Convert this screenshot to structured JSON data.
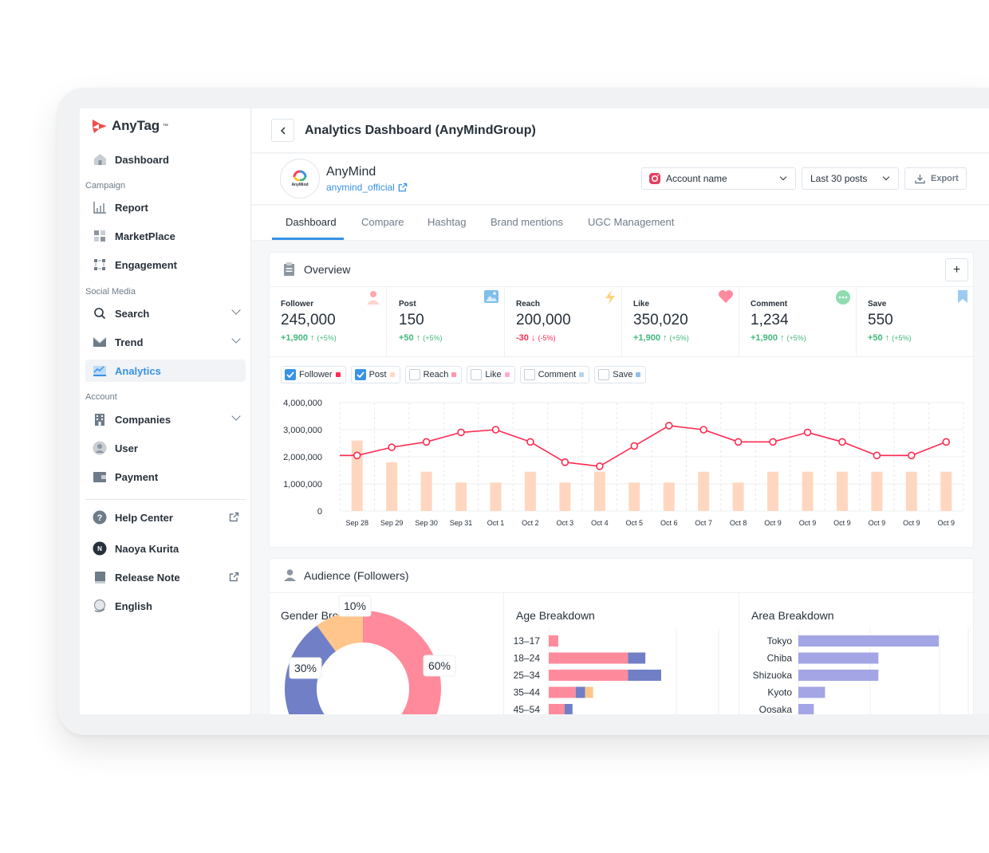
{
  "app": {
    "name": "AnyTag"
  },
  "sidebar": {
    "sections": {
      "campaign": "Campaign",
      "social": "Social Media",
      "account": "Account"
    },
    "items": [
      {
        "label": "Dashboard"
      },
      {
        "label": "Report"
      },
      {
        "label": "MarketPlace"
      },
      {
        "label": "Engagement"
      },
      {
        "label": "Search"
      },
      {
        "label": "Trend"
      },
      {
        "label": "Analytics"
      },
      {
        "label": "Companies"
      },
      {
        "label": "User"
      },
      {
        "label": "Payment"
      },
      {
        "label": "Help Center"
      },
      {
        "label": "Naoya Kurita",
        "initial": "N"
      },
      {
        "label": "Release Note"
      },
      {
        "label": "English"
      }
    ],
    "active_item": "Analytics"
  },
  "header": {
    "title": "Analytics Dashboard (AnyMindGroup)"
  },
  "account": {
    "name": "AnyMind",
    "handle": "anymind_official",
    "avatar_text": "AnyMind",
    "select_placeholder": "Account name",
    "range_label": "Last 30 posts",
    "export_label": "Export"
  },
  "tabs": [
    {
      "label": "Dashboard",
      "active": true
    },
    {
      "label": "Compare"
    },
    {
      "label": "Hashtag"
    },
    {
      "label": "Brand mentions"
    },
    {
      "label": "UGC Management"
    }
  ],
  "overview": {
    "title": "Overview",
    "plus_label": "+",
    "metrics": [
      {
        "label": "Follower",
        "value": "245,000",
        "delta": "+1,900",
        "arrow": "↑",
        "pct": "(+5%)",
        "trend": "up",
        "icon": "person-icon",
        "color": "#ffaaa8"
      },
      {
        "label": "Post",
        "value": "150",
        "delta": "+50",
        "arrow": "↑",
        "pct": "(+5%)",
        "trend": "up",
        "icon": "image-icon",
        "color": "#7fbeeb"
      },
      {
        "label": "Reach",
        "value": "200,000",
        "delta": "-30",
        "arrow": "↓",
        "pct": "(-5%)",
        "trend": "down",
        "icon": "lightning-icon",
        "color": "#ffd27f"
      },
      {
        "label": "Like",
        "value": "350,020",
        "delta": "+1,900",
        "arrow": "↑",
        "pct": "(+5%)",
        "trend": "up",
        "icon": "heart-icon",
        "color": "#ff8aa0"
      },
      {
        "label": "Comment",
        "value": "1,234",
        "delta": "+1,900",
        "arrow": "↑",
        "pct": "(+5%)",
        "trend": "up",
        "icon": "chat-icon",
        "color": "#8fdcb0"
      },
      {
        "label": "Save",
        "value": "550",
        "delta": "+50",
        "arrow": "↑",
        "pct": "(+5%)",
        "trend": "up",
        "icon": "bookmark-icon",
        "color": "#9ccbf2"
      }
    ],
    "series_toggles": [
      {
        "label": "Follower",
        "checked": true,
        "color": "#ff2b52"
      },
      {
        "label": "Post",
        "checked": true,
        "color": "#ffd7c0"
      },
      {
        "label": "Reach",
        "checked": false,
        "color": "#ff96ae"
      },
      {
        "label": "Like",
        "checked": false,
        "color": "#ffaad0"
      },
      {
        "label": "Comment",
        "checked": false,
        "color": "#b4d4f0"
      },
      {
        "label": "Save",
        "checked": false,
        "color": "#93bde8"
      }
    ]
  },
  "audience": {
    "title": "Audience (Followers)",
    "gender_title": "Gender Breakdown",
    "age_title": "Age Breakdown",
    "area_title": "Area Breakdown"
  },
  "colors": {
    "accent": "#3892e5",
    "up": "#40b87c",
    "down": "#ff2b52"
  },
  "chart_data": [
    {
      "type": "bar",
      "title": "",
      "categories": [
        "Sep 28",
        "Sep 29",
        "Sep 30",
        "Sep 31",
        "Oct 1",
        "Oct 2",
        "Oct 3",
        "Oct 4",
        "Oct 5",
        "Oct 6",
        "Oct 7",
        "Oct 8",
        "Oct 9",
        "Oct 9",
        "Oct 9",
        "Oct 9",
        "Oct 9",
        "Oct 9"
      ],
      "yticks": [
        "4,000,000",
        "3,000,000",
        "2,000,000",
        "1,000,000",
        "0"
      ],
      "ylim": [
        0,
        4000000
      ],
      "series": [
        {
          "name": "Follower",
          "kind": "line",
          "color": "#ff2b52",
          "values": [
            2050000,
            2350000,
            2550000,
            2900000,
            3000000,
            2550000,
            1800000,
            1650000,
            2400000,
            3150000,
            3000000,
            2550000,
            2550000,
            2900000,
            2550000,
            2050000,
            2050000,
            2550000
          ]
        },
        {
          "name": "Post",
          "kind": "bar",
          "color": "#ffd7c0",
          "values": [
            2600000,
            1800000,
            1450000,
            1050000,
            1050000,
            1450000,
            1050000,
            1450000,
            1050000,
            1050000,
            1450000,
            1050000,
            1450000,
            1450000,
            1450000,
            1450000,
            1450000,
            1450000
          ]
        }
      ],
      "grid": true
    },
    {
      "type": "pie",
      "title": "Gender Breakdown",
      "slices": [
        {
          "label": "60%",
          "value": 60,
          "color": "#ff8a9b"
        },
        {
          "label": "30%",
          "value": 30,
          "color": "#707fc6"
        },
        {
          "label": "10%",
          "value": 10,
          "color": "#ffc58a"
        }
      ]
    },
    {
      "type": "bar",
      "title": "Age Breakdown",
      "orientation": "horizontal",
      "stacked": true,
      "categories": [
        "13–17",
        "18–24",
        "25–34",
        "35–44",
        "45–54"
      ],
      "series": [
        {
          "color": "#ff8a9b",
          "values": [
            6,
            50,
            50,
            17,
            10
          ]
        },
        {
          "color": "#707fc6",
          "values": [
            0,
            11,
            21,
            6,
            5
          ]
        },
        {
          "color": "#ffc58a",
          "values": [
            0,
            0,
            0,
            5,
            0
          ]
        }
      ]
    },
    {
      "type": "bar",
      "title": "Area Breakdown",
      "orientation": "horizontal",
      "categories": [
        "Tokyo",
        "Chiba",
        "Shizuoka",
        "Kyoto",
        "Oosaka"
      ],
      "series": [
        {
          "color": "#a3a5e4",
          "values": [
            100,
            57,
            57,
            19,
            11
          ]
        }
      ]
    }
  ]
}
